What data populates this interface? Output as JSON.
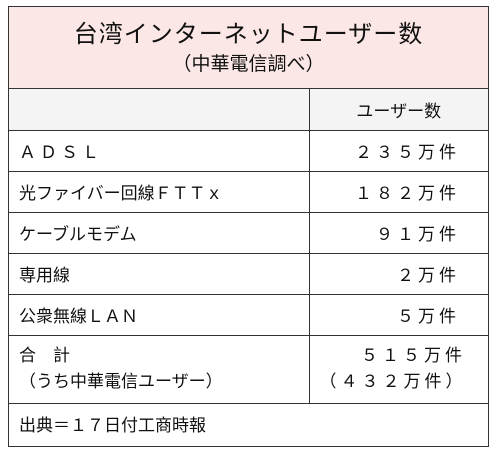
{
  "title": "台湾インターネットユーザー数",
  "subtitle": "（中華電信調べ）",
  "header": {
    "label": "",
    "value": "ユーザー数"
  },
  "rows": [
    {
      "label": "ＡＤＳＬ",
      "value": "２３５万件"
    },
    {
      "label": "光ファイバー回線ＦＴＴｘ",
      "value": "１８２万件"
    },
    {
      "label": "ケーブルモデム",
      "value": "９１万件"
    },
    {
      "label": "専用線",
      "value": "２万件"
    },
    {
      "label": "公衆無線ＬＡＮ",
      "value": "５万件"
    }
  ],
  "total": {
    "label_line1": "合　計",
    "label_line2": "（うち中華電信ユーザー）",
    "value_line1": "５１５万件",
    "value_line2": "（４３２万件）"
  },
  "source": "出典＝１７日付工商時報"
}
